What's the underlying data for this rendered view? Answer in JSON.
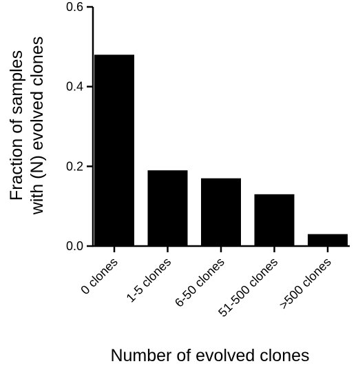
{
  "chart_data": {
    "type": "bar",
    "categories": [
      "0 clones",
      "1-5 clones",
      "6-50 clones",
      "51-500 clones",
      ">500 clones"
    ],
    "values": [
      0.48,
      0.19,
      0.17,
      0.13,
      0.03
    ],
    "xlabel": "Number of evolved clones",
    "ylabel_lines": [
      "Fraction of samples",
      "with (N) evolved clones"
    ],
    "ylim": [
      0,
      0.6
    ],
    "yticks": [
      0.0,
      0.2,
      0.4,
      0.6
    ],
    "ytick_labels": [
      "0.0",
      "0.2",
      "0.4",
      "0.6"
    ],
    "grid": false,
    "bar_color": "#000000"
  }
}
